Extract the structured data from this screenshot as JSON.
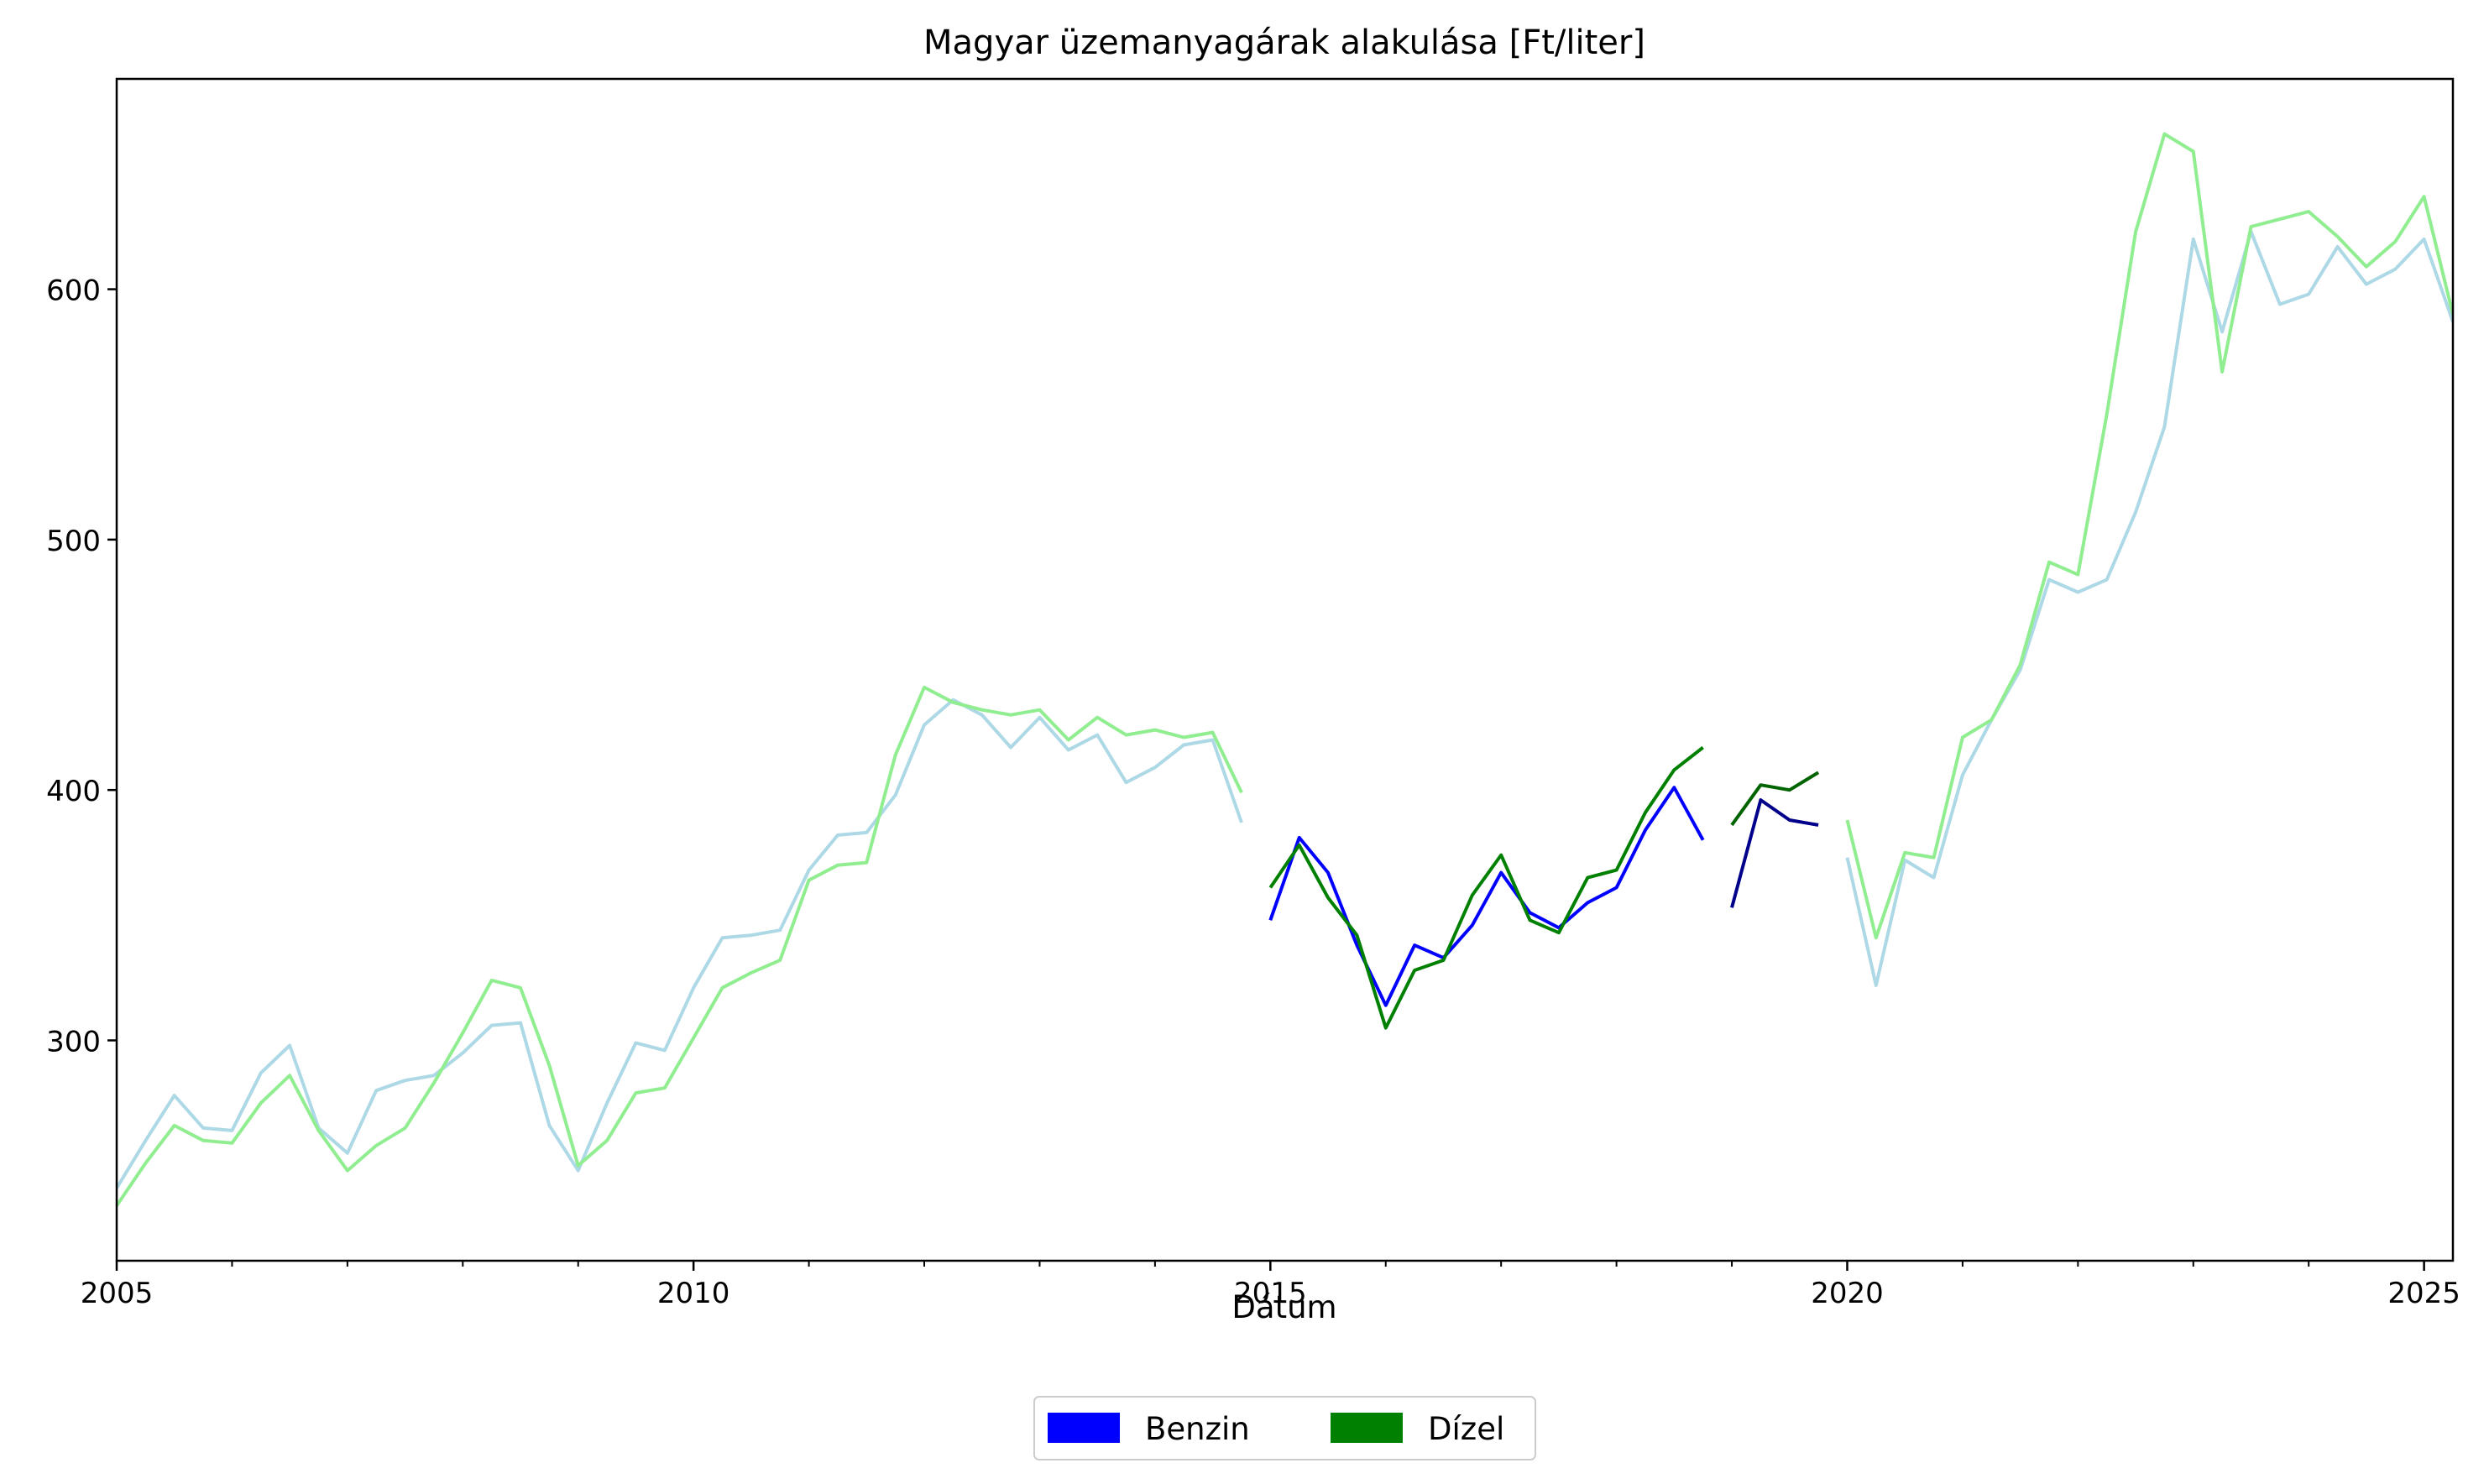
{
  "chart_data": {
    "type": "line",
    "title": "Magyar üzemanyagárak alakulása [Ft/liter]",
    "xlabel": "Dátum",
    "ylabel": "",
    "xlim": [
      2005.0,
      2025.25
    ],
    "ylim": [
      212,
      684
    ],
    "x_ticks": [
      2005,
      2010,
      2015,
      2020,
      2025
    ],
    "x_minor_ticks": [
      2006,
      2007,
      2008,
      2009,
      2011,
      2012,
      2013,
      2014,
      2016,
      2017,
      2018,
      2019,
      2021,
      2022,
      2023,
      2024
    ],
    "y_ticks": [
      300,
      400,
      500,
      600
    ],
    "grid": false,
    "legend": {
      "position": "bottom-center",
      "entries": [
        {
          "name": "Benzin",
          "color": "#0000ff"
        },
        {
          "name": "Dízel",
          "color": "#008000"
        }
      ]
    },
    "series": [
      {
        "group": "Benzin",
        "color": "#add8e6",
        "x": [
          2005.0,
          2005.25,
          2005.5,
          2005.75,
          2006.0,
          2006.25,
          2006.5,
          2006.75,
          2007.0,
          2007.25,
          2007.5,
          2007.75,
          2008.0,
          2008.25,
          2008.5,
          2008.75,
          2009.0,
          2009.25,
          2009.5,
          2009.75,
          2010.0,
          2010.25,
          2010.5,
          2010.75,
          2011.0,
          2011.25,
          2011.5,
          2011.75,
          2012.0,
          2012.25,
          2012.5,
          2012.75,
          2013.0,
          2013.25,
          2013.5,
          2013.75,
          2014.0,
          2014.25,
          2014.5,
          2014.75
        ],
        "y": [
          241,
          260,
          278,
          265,
          264,
          287,
          298,
          265,
          255,
          280,
          284,
          286,
          295,
          306,
          307,
          266,
          248,
          275,
          299,
          296,
          321,
          341,
          342,
          344,
          368,
          382,
          383,
          398,
          426,
          436,
          430,
          417,
          429,
          416,
          422,
          403,
          409,
          418,
          420,
          387
        ]
      },
      {
        "group": "Dízel",
        "color": "#90ee90",
        "x": [
          2005.0,
          2005.25,
          2005.5,
          2005.75,
          2006.0,
          2006.25,
          2006.5,
          2006.75,
          2007.0,
          2007.25,
          2007.5,
          2007.75,
          2008.0,
          2008.25,
          2008.5,
          2008.75,
          2009.0,
          2009.25,
          2009.5,
          2009.75,
          2010.0,
          2010.25,
          2010.5,
          2010.75,
          2011.0,
          2011.25,
          2011.5,
          2011.75,
          2012.0,
          2012.25,
          2012.5,
          2012.75,
          2013.0,
          2013.25,
          2013.5,
          2013.75,
          2014.0,
          2014.25,
          2014.5,
          2014.75
        ],
        "y": [
          234,
          251,
          266,
          260,
          259,
          275,
          286,
          264,
          248,
          258,
          265,
          283,
          303,
          324,
          321,
          290,
          250,
          260,
          279,
          281,
          301,
          321,
          327,
          332,
          364,
          370,
          371,
          414,
          441,
          435,
          432,
          430,
          432,
          420,
          429,
          422,
          424,
          421,
          423,
          399
        ]
      },
      {
        "group": "Benzin",
        "color": "#0000ff",
        "x": [
          2015.0,
          2015.25,
          2015.5,
          2015.75,
          2016.0,
          2016.25,
          2016.5,
          2016.75,
          2017.0,
          2017.25,
          2017.5,
          2017.75,
          2018.0,
          2018.25,
          2018.5,
          2018.75
        ],
        "y": [
          348,
          381,
          367,
          338,
          314,
          338,
          333,
          346,
          367,
          351,
          345,
          355,
          361,
          384,
          401,
          380
        ]
      },
      {
        "group": "Dízel",
        "color": "#008000",
        "x": [
          2015.0,
          2015.25,
          2015.5,
          2015.75,
          2016.0,
          2016.25,
          2016.5,
          2016.75,
          2017.0,
          2017.25,
          2017.5,
          2017.75,
          2018.0,
          2018.25,
          2018.5,
          2018.75
        ],
        "y": [
          361,
          378,
          357,
          342,
          305,
          328,
          332,
          358,
          374,
          348,
          343,
          365,
          368,
          391,
          408,
          417
        ]
      },
      {
        "group": "Benzin",
        "color": "#00008b",
        "x": [
          2019.0,
          2019.25,
          2019.5,
          2019.75
        ],
        "y": [
          353,
          396,
          388,
          386
        ]
      },
      {
        "group": "Dízel",
        "color": "#006400",
        "x": [
          2019.0,
          2019.25,
          2019.5,
          2019.75
        ],
        "y": [
          386,
          402,
          400,
          407
        ]
      },
      {
        "group": "Benzin",
        "color": "#add8e6",
        "x": [
          2020.0,
          2020.25,
          2020.5,
          2020.75,
          2021.0,
          2021.25,
          2021.5,
          2021.75,
          2022.0,
          2022.25,
          2022.5,
          2022.75,
          2023.0,
          2023.25,
          2023.5,
          2023.75,
          2024.0,
          2024.25,
          2024.5,
          2024.75,
          2025.0,
          2025.25
        ],
        "y": [
          373,
          322,
          372,
          365,
          406,
          428,
          448,
          484,
          479,
          484,
          511,
          545,
          620,
          583,
          623,
          594,
          598,
          617,
          602,
          608,
          620,
          587
        ]
      },
      {
        "group": "Dízel",
        "color": "#90ee90",
        "x": [
          2020.0,
          2020.25,
          2020.5,
          2020.75,
          2021.0,
          2021.25,
          2021.5,
          2021.75,
          2022.0,
          2022.25,
          2022.5,
          2022.75,
          2023.0,
          2023.25,
          2023.5,
          2023.75,
          2024.0,
          2024.25,
          2024.5,
          2024.75,
          2025.0,
          2025.25
        ],
        "y": [
          388,
          341,
          375,
          373,
          421,
          428,
          450,
          491,
          486,
          550,
          623,
          662,
          655,
          567,
          625,
          628,
          631,
          621,
          609,
          619,
          637,
          590
        ]
      }
    ]
  }
}
